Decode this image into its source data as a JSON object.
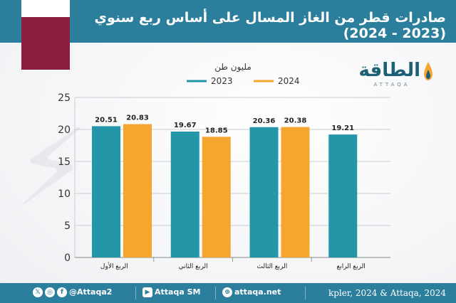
{
  "header": {
    "title": "صادرات قطر من الغاز المسال على أساس ربع سنوي (2023 - 2024)"
  },
  "brand": {
    "name": "الطاقة",
    "sub": "ATTAQA"
  },
  "colors": {
    "header_bg": "#2c7f9c",
    "series_2023": "#2396a7",
    "series_2024": "#f5a62f",
    "flag_maroon": "#8b1e3f",
    "flag_white": "#ffffff"
  },
  "chart_data": {
    "type": "bar",
    "unit_label": "مليون طن",
    "categories": [
      "الربع الأول",
      "الربع الثاني",
      "الربع الثالث",
      "الربع الرابع"
    ],
    "series": [
      {
        "name": "2023",
        "values": [
          20.51,
          19.67,
          20.36,
          19.21
        ],
        "color": "#2396a7"
      },
      {
        "name": "2024",
        "values": [
          20.83,
          18.85,
          20.38,
          null
        ],
        "color": "#f5a62f"
      }
    ],
    "data_labels": [
      [
        "20.51",
        "19.67",
        "20.36",
        "19.21"
      ],
      [
        "20.83",
        "18.85",
        "20.38",
        ""
      ]
    ],
    "ylim": [
      0,
      25
    ],
    "yticks": [
      0,
      5,
      10,
      15,
      20,
      25
    ],
    "grid": true,
    "legend_position": "top"
  },
  "footer": {
    "social_icons": [
      "x-icon",
      "instagram-icon",
      "facebook-icon"
    ],
    "handle": "@Attaqa2",
    "youtube": "Attaqa SM",
    "website": "attaqa.net",
    "source": "kpler, 2024 & Attaqa, 2024"
  }
}
